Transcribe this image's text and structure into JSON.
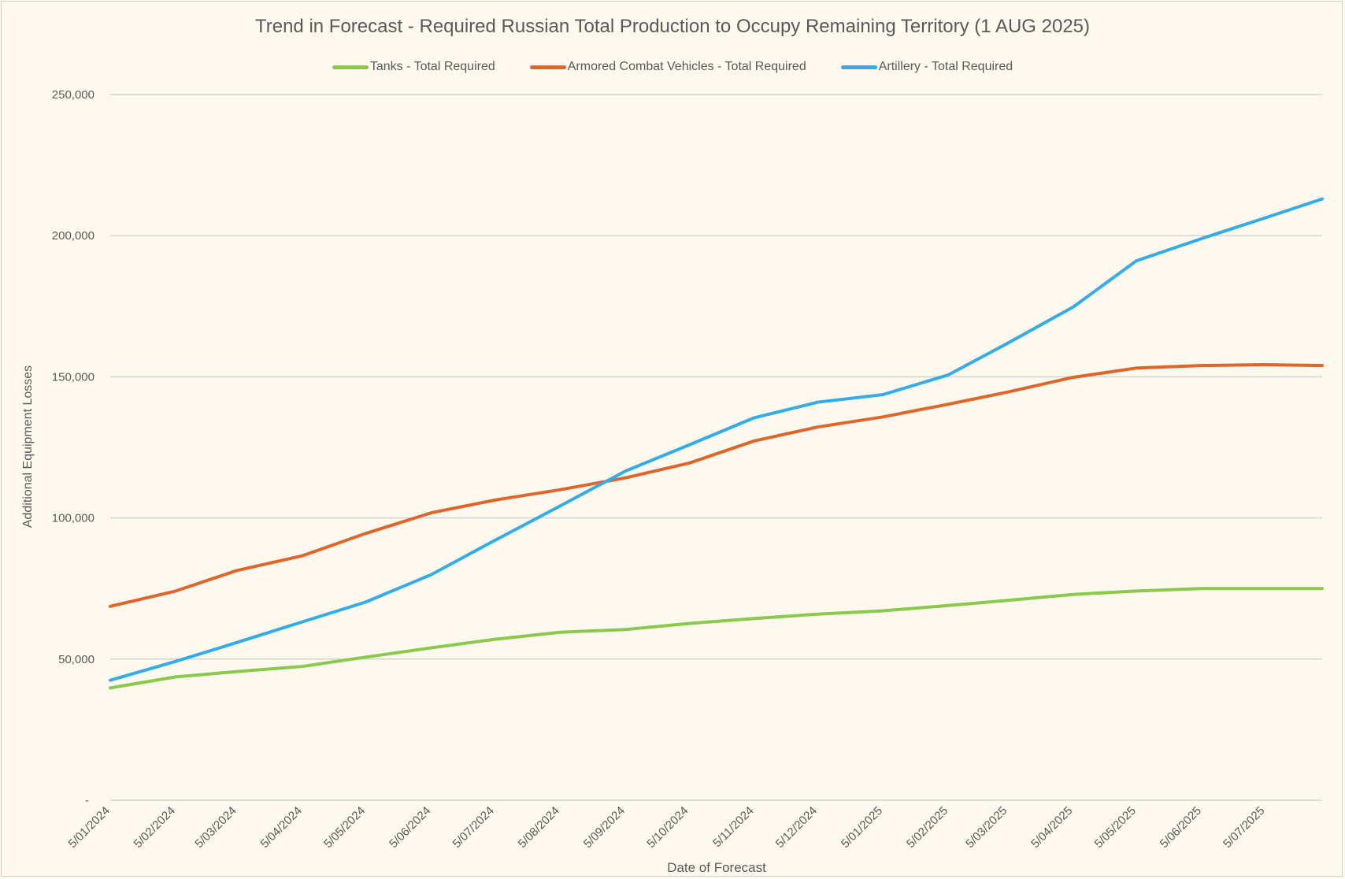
{
  "chart_data": {
    "type": "line",
    "title": "Trend in Forecast - Required Russian Total Production to Occupy Remaining Territory (1 AUG 2025)",
    "xlabel": "Date of Forecast",
    "ylabel": "Additional Equipment Losses",
    "ylim": [
      0,
      250000
    ],
    "yticks": [
      0,
      50000,
      100000,
      150000,
      200000,
      250000
    ],
    "ytick_labels": [
      "-",
      "50,000",
      "100,000",
      "150,000",
      "200,000",
      "250,000"
    ],
    "xtick_labels": [
      "5/01/2024",
      "5/02/2024",
      "5/03/2024",
      "5/04/2024",
      "5/05/2024",
      "5/06/2024",
      "5/07/2024",
      "5/08/2024",
      "5/09/2024",
      "5/10/2024",
      "5/11/2024",
      "5/12/2024",
      "5/01/2025",
      "5/02/2025",
      "5/03/2025",
      "5/04/2025",
      "5/05/2025",
      "5/06/2025",
      "5/07/2025"
    ],
    "x": [
      "2024-01-05",
      "2024-02-05",
      "2024-03-05",
      "2024-04-05",
      "2024-05-05",
      "2024-06-05",
      "2024-07-05",
      "2024-08-05",
      "2024-09-05",
      "2024-10-05",
      "2024-11-05",
      "2024-12-05",
      "2025-01-05",
      "2025-02-05",
      "2025-03-05",
      "2025-04-05",
      "2025-05-05",
      "2025-06-05",
      "2025-07-05",
      "2025-08-01"
    ],
    "grid": true,
    "legend_position": "top",
    "series": [
      {
        "name": "Tanks - Total Required",
        "color": "#8cc84b",
        "values": [
          39800,
          43700,
          45600,
          47400,
          50700,
          54000,
          57000,
          59500,
          60500,
          62600,
          64400,
          65900,
          67100,
          69000,
          70800,
          72900,
          74100,
          75000,
          75000,
          75000
        ]
      },
      {
        "name": "Armored Combat Vehicles - Total Required",
        "color": "#e0652b",
        "values": [
          68700,
          74100,
          81400,
          86600,
          94500,
          101800,
          106300,
          110000,
          114200,
          119400,
          127300,
          132200,
          135800,
          140300,
          144600,
          149800,
          153100,
          154000,
          154300,
          154000
        ]
      },
      {
        "name": "Artillery - Total Required",
        "color": "#35abe8",
        "values": [
          42500,
          49200,
          55900,
          63200,
          70200,
          79900,
          92000,
          104200,
          116600,
          125800,
          135500,
          141000,
          143700,
          150700,
          161900,
          174700,
          191100,
          199000,
          206300,
          213000
        ]
      }
    ]
  }
}
